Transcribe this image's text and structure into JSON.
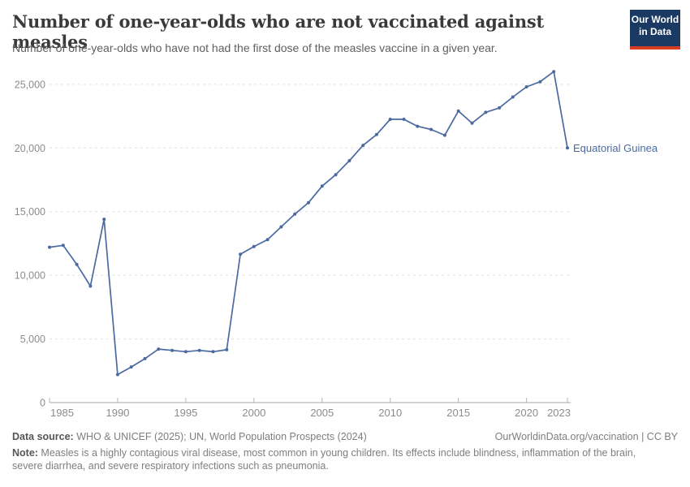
{
  "header": {
    "logo": {
      "line1": "Our World",
      "line2": "in Data",
      "bg_color": "#1a3a63",
      "bar_color": "#d73c22"
    }
  },
  "chart_data": {
    "type": "line",
    "title": "Number of one-year-olds who are not vaccinated against measles",
    "subtitle": "Number of one-year-olds who have not had the first dose of the measles vaccine in a given year.",
    "xlabel": "",
    "ylabel": "",
    "x": [
      1985,
      1986,
      1987,
      1988,
      1989,
      1990,
      1991,
      1992,
      1993,
      1994,
      1995,
      1996,
      1997,
      1998,
      1999,
      2000,
      2001,
      2002,
      2003,
      2004,
      2005,
      2006,
      2007,
      2008,
      2009,
      2010,
      2011,
      2012,
      2013,
      2014,
      2015,
      2016,
      2017,
      2018,
      2019,
      2020,
      2021,
      2022,
      2023
    ],
    "series": [
      {
        "name": "Equatorial Guinea",
        "values": [
          12200,
          12350,
          10850,
          9150,
          14400,
          2200,
          2800,
          3450,
          4200,
          4100,
          4000,
          4100,
          4000,
          4150,
          11650,
          12250,
          12800,
          13800,
          14800,
          15700,
          17000,
          17900,
          19000,
          20200,
          21050,
          22250,
          22250,
          21700,
          21450,
          21000,
          22900,
          21950,
          22800,
          23150,
          24000,
          24800,
          25200,
          26000,
          20000
        ]
      }
    ],
    "ylim": [
      0,
      26500
    ],
    "yticks": [
      0,
      5000,
      10000,
      15000,
      20000,
      25000
    ],
    "ytick_labels": [
      "0",
      "5,000",
      "10,000",
      "15,000",
      "20,000",
      "25,000"
    ],
    "xticks": [
      1985,
      1990,
      1995,
      2000,
      2005,
      2010,
      2015,
      2020,
      2023
    ],
    "grid": "horizontal-dashed",
    "legend_position": "end-of-line-label",
    "colors": {
      "line": "#4a6aa0",
      "series_label": "#4a6aa0",
      "grid": "#e0e0e0",
      "axis": "#a6a6a6",
      "tick": "#b5b5b5",
      "tick_label": "#8c8c8c"
    }
  },
  "footer": {
    "data_source_label": "Data source:",
    "data_source_text": " WHO & UNICEF (2025); UN, World Population Prospects (2024)",
    "attribution_link": "OurWorldinData.org/vaccination",
    "license_text": " | CC BY",
    "note_label": "Note:",
    "note_text": " Measles is a highly contagious viral disease, most common in young children. Its effects include blindness, inflammation of the brain, severe diarrhea, and severe respiratory infections such as pneumonia."
  }
}
